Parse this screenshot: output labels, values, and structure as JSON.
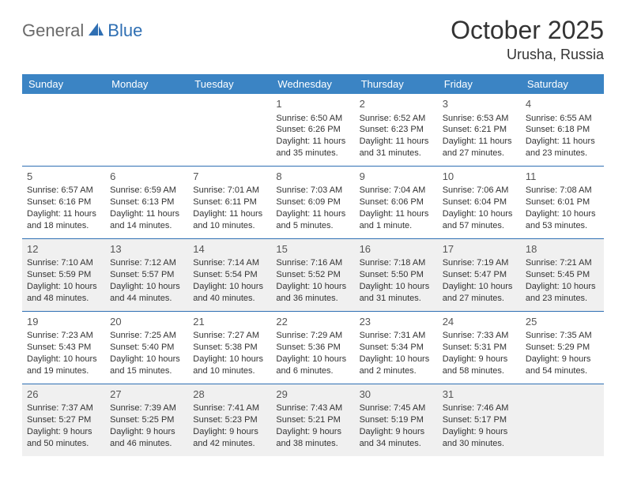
{
  "logo": {
    "part1": "General",
    "part2": "Blue"
  },
  "title": "October 2025",
  "location": "Urusha, Russia",
  "colors": {
    "header_bg": "#3b84c4",
    "header_text": "#ffffff",
    "rule": "#2f6fb3",
    "alt_row_bg": "#f0f0f0",
    "text": "#333333",
    "logo_gray": "#6a6a6a",
    "logo_blue": "#2f6fb3",
    "background": "#ffffff"
  },
  "day_headers": [
    "Sunday",
    "Monday",
    "Tuesday",
    "Wednesday",
    "Thursday",
    "Friday",
    "Saturday"
  ],
  "weeks": [
    {
      "alt": false,
      "days": [
        null,
        null,
        null,
        {
          "n": "1",
          "sunrise": "6:50 AM",
          "sunset": "6:26 PM",
          "daylight": "11 hours and 35 minutes."
        },
        {
          "n": "2",
          "sunrise": "6:52 AM",
          "sunset": "6:23 PM",
          "daylight": "11 hours and 31 minutes."
        },
        {
          "n": "3",
          "sunrise": "6:53 AM",
          "sunset": "6:21 PM",
          "daylight": "11 hours and 27 minutes."
        },
        {
          "n": "4",
          "sunrise": "6:55 AM",
          "sunset": "6:18 PM",
          "daylight": "11 hours and 23 minutes."
        }
      ]
    },
    {
      "alt": false,
      "days": [
        {
          "n": "5",
          "sunrise": "6:57 AM",
          "sunset": "6:16 PM",
          "daylight": "11 hours and 18 minutes."
        },
        {
          "n": "6",
          "sunrise": "6:59 AM",
          "sunset": "6:13 PM",
          "daylight": "11 hours and 14 minutes."
        },
        {
          "n": "7",
          "sunrise": "7:01 AM",
          "sunset": "6:11 PM",
          "daylight": "11 hours and 10 minutes."
        },
        {
          "n": "8",
          "sunrise": "7:03 AM",
          "sunset": "6:09 PM",
          "daylight": "11 hours and 5 minutes."
        },
        {
          "n": "9",
          "sunrise": "7:04 AM",
          "sunset": "6:06 PM",
          "daylight": "11 hours and 1 minute."
        },
        {
          "n": "10",
          "sunrise": "7:06 AM",
          "sunset": "6:04 PM",
          "daylight": "10 hours and 57 minutes."
        },
        {
          "n": "11",
          "sunrise": "7:08 AM",
          "sunset": "6:01 PM",
          "daylight": "10 hours and 53 minutes."
        }
      ]
    },
    {
      "alt": true,
      "days": [
        {
          "n": "12",
          "sunrise": "7:10 AM",
          "sunset": "5:59 PM",
          "daylight": "10 hours and 48 minutes."
        },
        {
          "n": "13",
          "sunrise": "7:12 AM",
          "sunset": "5:57 PM",
          "daylight": "10 hours and 44 minutes."
        },
        {
          "n": "14",
          "sunrise": "7:14 AM",
          "sunset": "5:54 PM",
          "daylight": "10 hours and 40 minutes."
        },
        {
          "n": "15",
          "sunrise": "7:16 AM",
          "sunset": "5:52 PM",
          "daylight": "10 hours and 36 minutes."
        },
        {
          "n": "16",
          "sunrise": "7:18 AM",
          "sunset": "5:50 PM",
          "daylight": "10 hours and 31 minutes."
        },
        {
          "n": "17",
          "sunrise": "7:19 AM",
          "sunset": "5:47 PM",
          "daylight": "10 hours and 27 minutes."
        },
        {
          "n": "18",
          "sunrise": "7:21 AM",
          "sunset": "5:45 PM",
          "daylight": "10 hours and 23 minutes."
        }
      ]
    },
    {
      "alt": false,
      "days": [
        {
          "n": "19",
          "sunrise": "7:23 AM",
          "sunset": "5:43 PM",
          "daylight": "10 hours and 19 minutes."
        },
        {
          "n": "20",
          "sunrise": "7:25 AM",
          "sunset": "5:40 PM",
          "daylight": "10 hours and 15 minutes."
        },
        {
          "n": "21",
          "sunrise": "7:27 AM",
          "sunset": "5:38 PM",
          "daylight": "10 hours and 10 minutes."
        },
        {
          "n": "22",
          "sunrise": "7:29 AM",
          "sunset": "5:36 PM",
          "daylight": "10 hours and 6 minutes."
        },
        {
          "n": "23",
          "sunrise": "7:31 AM",
          "sunset": "5:34 PM",
          "daylight": "10 hours and 2 minutes."
        },
        {
          "n": "24",
          "sunrise": "7:33 AM",
          "sunset": "5:31 PM",
          "daylight": "9 hours and 58 minutes."
        },
        {
          "n": "25",
          "sunrise": "7:35 AM",
          "sunset": "5:29 PM",
          "daylight": "9 hours and 54 minutes."
        }
      ]
    },
    {
      "alt": true,
      "days": [
        {
          "n": "26",
          "sunrise": "7:37 AM",
          "sunset": "5:27 PM",
          "daylight": "9 hours and 50 minutes."
        },
        {
          "n": "27",
          "sunrise": "7:39 AM",
          "sunset": "5:25 PM",
          "daylight": "9 hours and 46 minutes."
        },
        {
          "n": "28",
          "sunrise": "7:41 AM",
          "sunset": "5:23 PM",
          "daylight": "9 hours and 42 minutes."
        },
        {
          "n": "29",
          "sunrise": "7:43 AM",
          "sunset": "5:21 PM",
          "daylight": "9 hours and 38 minutes."
        },
        {
          "n": "30",
          "sunrise": "7:45 AM",
          "sunset": "5:19 PM",
          "daylight": "9 hours and 34 minutes."
        },
        {
          "n": "31",
          "sunrise": "7:46 AM",
          "sunset": "5:17 PM",
          "daylight": "9 hours and 30 minutes."
        },
        null
      ]
    }
  ],
  "labels": {
    "sunrise": "Sunrise:",
    "sunset": "Sunset:",
    "daylight": "Daylight:"
  }
}
